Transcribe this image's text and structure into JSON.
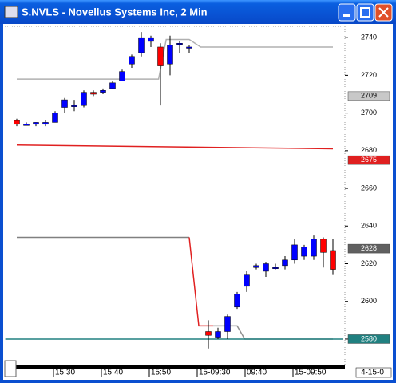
{
  "window": {
    "title": "S.NVLS - Novellus Systems Inc, 2 Min"
  },
  "chart_data": {
    "type": "candlestick",
    "categories": [
      null,
      null,
      null,
      null,
      "15:30",
      null,
      null,
      null,
      null,
      "15:40",
      null,
      null,
      null,
      null,
      "15:50",
      null,
      null,
      null,
      null,
      "15-09:30",
      null,
      null,
      null,
      null,
      "09:40",
      null,
      null,
      null,
      null,
      "15-09:50",
      null,
      null,
      null,
      null
    ],
    "open": [
      2696,
      2694,
      2694,
      2694,
      2695,
      2703,
      2704,
      2704,
      2711,
      2711,
      2713,
      2717,
      2726,
      2732,
      2738,
      2735,
      2726,
      2737,
      2735,
      null,
      2584,
      2581,
      2584,
      2597,
      2608,
      2618,
      2616,
      2618,
      2619,
      2622,
      2624,
      2624,
      2633,
      2627
    ],
    "high": [
      2697,
      2695,
      2695,
      2696,
      2701,
      2708,
      2707,
      2712,
      2712,
      2713,
      2717,
      2723,
      2731,
      2743,
      2741,
      2737,
      2741,
      2738,
      2736,
      null,
      2590,
      2586,
      2593,
      2605,
      2616,
      2620,
      2621,
      2620,
      2624,
      2633,
      2630,
      2635,
      2634,
      2633
    ],
    "low": [
      2693,
      2694,
      2693,
      2693,
      2695,
      2700,
      2701,
      2703,
      2709,
      2710,
      2713,
      2717,
      2724,
      2730,
      2735,
      2704,
      2720,
      2732,
      2732,
      null,
      2575,
      2580,
      2580,
      2596,
      2605,
      2617,
      2613,
      2617,
      2617,
      2620,
      2622,
      2622,
      2618,
      2614
    ],
    "close": [
      2694,
      2694,
      2695,
      2695,
      2700,
      2707,
      2704,
      2711,
      2710,
      2712,
      2716,
      2722,
      2730,
      2740,
      2740,
      2725,
      2736,
      2737,
      2735,
      null,
      2582,
      2584,
      2592,
      2604,
      2614,
      2619,
      2620,
      2618,
      2622,
      2630,
      2629,
      2633,
      2626,
      2617
    ],
    "up_color": "#0000ff",
    "down_color": "#ff0000",
    "ylim": [
      2566,
      2746
    ],
    "yticks": [
      2580,
      2600,
      2620,
      2640,
      2660,
      2680,
      2700,
      2720,
      2740
    ],
    "lines": [
      {
        "color": "#b0b0b0",
        "x": [
          0,
          14.8,
          15.6,
          18,
          19.2,
          33
        ],
        "values": [
          2718,
          2718,
          2739,
          2739,
          2735,
          2735
        ]
      },
      {
        "color": "#e02020",
        "x": [
          0,
          33
        ],
        "values": [
          2683,
          2681
        ]
      },
      {
        "color": "#808080",
        "x": [
          0,
          18
        ],
        "values": [
          2634,
          2634
        ]
      },
      {
        "color": "#e02020",
        "x": [
          18,
          19,
          20.5
        ],
        "values": [
          2634,
          2587,
          2587
        ]
      },
      {
        "color": "#909090",
        "x": [
          20.5,
          23,
          23.8,
          33
        ],
        "values": [
          2587,
          2587,
          2580,
          2580
        ]
      },
      {
        "color": "#208080",
        "x": [
          -1.2,
          34
        ],
        "values": [
          2580,
          2580
        ]
      }
    ],
    "markers": [
      {
        "value": 2709,
        "color": "#c8c8c8",
        "text_color": "#000000"
      },
      {
        "value": 2675,
        "color": "#e02020",
        "text_color": "#ffffff"
      },
      {
        "value": 2628,
        "color": "#606060",
        "text_color": "#ffffff"
      },
      {
        "value": 2580,
        "color": "#208080",
        "text_color": "#ffffff"
      }
    ],
    "date_label": "4-15-0"
  }
}
